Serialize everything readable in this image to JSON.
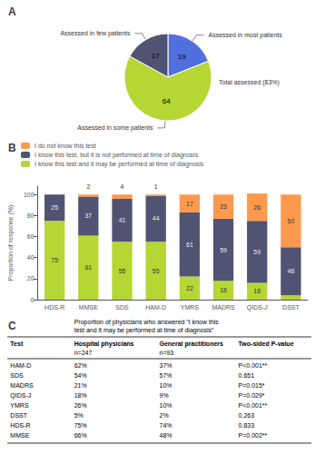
{
  "chart_data": [
    {
      "type": "pie",
      "title": "A",
      "categories": [
        "Assessed in most patients",
        "Assessed in some patients",
        "Assessed in few patients"
      ],
      "values": [
        19,
        64,
        17
      ],
      "data_labels": true,
      "annotations": [
        "Total assessed (83%)"
      ]
    },
    {
      "type": "bar",
      "title": "B",
      "categories": [
        "HDS-R",
        "MMSE",
        "SDS",
        "HAM-D",
        "YMRS",
        "MADRS",
        "QIDS-J",
        "DSST"
      ],
      "series": [
        {
          "name": "I know this test and it may be performed at time of diagnosis",
          "values": [
            75,
            61,
            55,
            55,
            22,
            18,
            16,
            4
          ],
          "value_labels": [
            "75",
            "61",
            "55",
            "55",
            "22",
            "18",
            "16",
            null
          ]
        },
        {
          "name": "I know this test, but it is not performed at time of diagnosis",
          "values": [
            25,
            37,
            41,
            44,
            61,
            59,
            59,
            46
          ]
        },
        {
          "name": "I do not know this test",
          "values": [
            0,
            2,
            4,
            1,
            17,
            23,
            26,
            50
          ],
          "value_labels": [
            null,
            "2",
            "4",
            "1",
            "17",
            "23",
            "26",
            "50"
          ]
        }
      ],
      "stacked": true,
      "ylabel": "Proportion of response (%)",
      "ylim": [
        0,
        108
      ],
      "yticks": [
        0,
        20,
        40,
        60,
        80,
        100
      ],
      "grid": false,
      "legend": "upper left",
      "data_labels": true
    },
    {
      "type": "table",
      "title": "C",
      "subtitle": "Proportion of physicians who answered “I know this\ntest and it may be performed at time of diagnosis”",
      "columns": [
        "Test",
        "Hospital physicians",
        "General practitioners",
        "Two-sided P-value"
      ],
      "subheader": [
        null,
        "n=247",
        "n=93",
        null
      ],
      "rows": [
        [
          "HAM-D",
          "62%",
          "37%",
          "P<0.001**"
        ],
        [
          "SDS",
          "54%",
          "57%",
          "0.651"
        ],
        [
          "MADRS",
          "21%",
          "10%",
          "P=0.015*"
        ],
        [
          "QIDS-J",
          "18%",
          "9%",
          "P=0.029*"
        ],
        [
          "YMRS",
          "26%",
          "10%",
          "P<0.001**"
        ],
        [
          "DSST",
          "5%",
          "2%",
          "0.263"
        ],
        [
          "HDS-R",
          "75%",
          "74%",
          "0.833"
        ],
        [
          "MMSE",
          "66%",
          "48%",
          "P=0.002**"
        ]
      ]
    }
  ]
}
